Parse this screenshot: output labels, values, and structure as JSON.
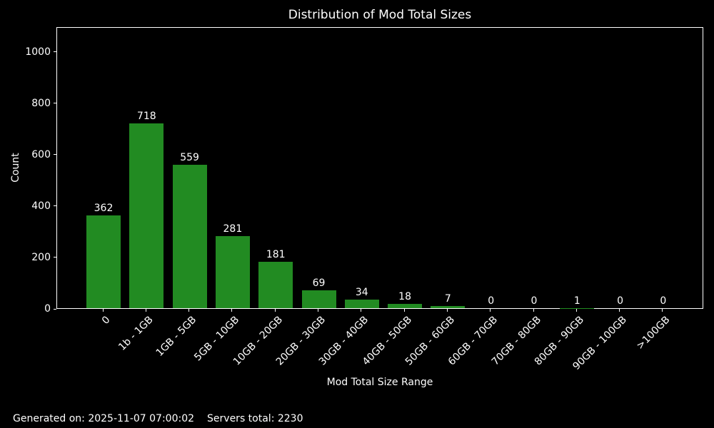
{
  "title": "Distribution of Mod Total Sizes",
  "footer": {
    "generated": "Generated on: 2025-11-07 07:00:02",
    "servers_total": "Servers total: 2230"
  },
  "colors": {
    "background": "#000000",
    "bar": "#228B22",
    "text": "#ffffff",
    "axis": "#ffffff"
  },
  "chart_data": {
    "type": "bar",
    "title": "Distribution of Mod Total Sizes",
    "xlabel": "Mod Total Size Range",
    "ylabel": "Count",
    "categories": [
      "0",
      "1b - 1GB",
      "1GB - 5GB",
      "5GB - 10GB",
      "10GB - 20GB",
      "20GB - 30GB",
      "30GB - 40GB",
      "40GB - 50GB",
      "50GB - 60GB",
      "60GB - 70GB",
      "70GB - 80GB",
      "80GB - 90GB",
      "90GB - 100GB",
      ">100GB"
    ],
    "values": [
      362,
      718,
      559,
      281,
      181,
      69,
      34,
      18,
      7,
      0,
      0,
      1,
      0,
      0
    ],
    "value_labels_shown": true,
    "yticks": [
      0,
      200,
      400,
      600,
      800,
      1000
    ],
    "ylim": [
      0,
      1097
    ],
    "grid": false,
    "legend": "none",
    "bar_color": "#228B22",
    "x_tick_rotation_deg": 45
  }
}
